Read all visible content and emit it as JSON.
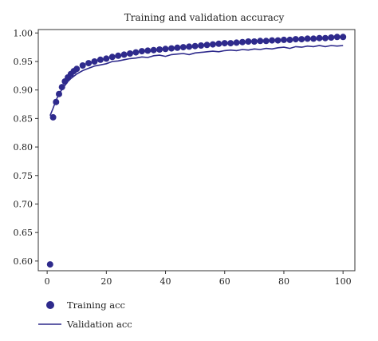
{
  "chart_data": {
    "type": "line",
    "title": "Training and validation accuracy",
    "xlabel": "",
    "ylabel": "",
    "xlim": [
      -3,
      104
    ],
    "ylim": [
      0.583,
      1.006
    ],
    "xticks": [
      0,
      20,
      40,
      60,
      80,
      100
    ],
    "yticks": [
      0.6,
      0.65,
      0.7,
      0.75,
      0.8,
      0.85,
      0.9,
      0.95,
      1.0
    ],
    "grid": false,
    "legend_position": "bottom-left",
    "colors": {
      "series": "#2e2a8c",
      "axis": "#333333"
    },
    "series": [
      {
        "name": "Training acc",
        "style": "markers",
        "x": [
          1,
          2,
          3,
          4,
          5,
          6,
          7,
          8,
          9,
          10,
          12,
          14,
          16,
          18,
          20,
          22,
          24,
          26,
          28,
          30,
          32,
          34,
          36,
          38,
          40,
          42,
          44,
          46,
          48,
          50,
          52,
          54,
          56,
          58,
          60,
          62,
          64,
          66,
          68,
          70,
          72,
          74,
          76,
          78,
          80,
          82,
          84,
          86,
          88,
          90,
          92,
          94,
          96,
          98,
          100
        ],
        "y": [
          0.594,
          0.852,
          0.879,
          0.893,
          0.905,
          0.915,
          0.922,
          0.928,
          0.933,
          0.937,
          0.943,
          0.947,
          0.95,
          0.953,
          0.955,
          0.958,
          0.96,
          0.962,
          0.964,
          0.966,
          0.968,
          0.969,
          0.97,
          0.971,
          0.972,
          0.973,
          0.974,
          0.975,
          0.976,
          0.977,
          0.978,
          0.979,
          0.98,
          0.981,
          0.982,
          0.982,
          0.983,
          0.984,
          0.985,
          0.985,
          0.986,
          0.986,
          0.987,
          0.987,
          0.988,
          0.988,
          0.989,
          0.989,
          0.99,
          0.99,
          0.991,
          0.991,
          0.992,
          0.993,
          0.993
        ]
      },
      {
        "name": "Validation acc",
        "style": "line",
        "x": [
          1,
          2,
          3,
          4,
          5,
          6,
          7,
          8,
          9,
          10,
          12,
          14,
          16,
          18,
          20,
          22,
          24,
          26,
          28,
          30,
          32,
          34,
          36,
          38,
          40,
          42,
          44,
          46,
          48,
          50,
          52,
          54,
          56,
          58,
          60,
          62,
          64,
          66,
          68,
          70,
          72,
          74,
          76,
          78,
          80,
          82,
          84,
          86,
          88,
          90,
          92,
          94,
          96,
          98,
          100
        ],
        "y": [
          0.855,
          0.868,
          0.882,
          0.893,
          0.901,
          0.908,
          0.915,
          0.92,
          0.924,
          0.928,
          0.934,
          0.938,
          0.942,
          0.944,
          0.946,
          0.95,
          0.951,
          0.953,
          0.955,
          0.956,
          0.958,
          0.957,
          0.96,
          0.961,
          0.959,
          0.962,
          0.963,
          0.964,
          0.962,
          0.965,
          0.966,
          0.967,
          0.968,
          0.967,
          0.969,
          0.97,
          0.969,
          0.971,
          0.97,
          0.972,
          0.971,
          0.973,
          0.972,
          0.974,
          0.975,
          0.973,
          0.976,
          0.975,
          0.977,
          0.976,
          0.978,
          0.976,
          0.978,
          0.977,
          0.978
        ]
      }
    ]
  }
}
